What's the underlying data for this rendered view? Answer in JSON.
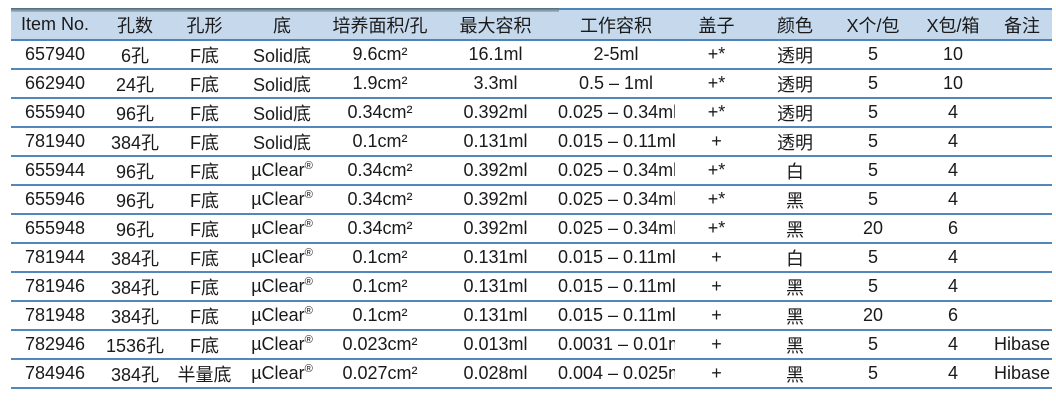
{
  "colors": {
    "header_bg": "#c6d9ec",
    "rule_blue": "#5088bb",
    "header_rule_blue": "#4d84ba",
    "text": "#1a1a1a",
    "top_bar_remnant": "#4c6574"
  },
  "table": {
    "columns": [
      {
        "key": "item-no",
        "label": "Item No."
      },
      {
        "key": "well-count",
        "label": "孔数"
      },
      {
        "key": "well-shape",
        "label": "孔形"
      },
      {
        "key": "bottom",
        "label": "底"
      },
      {
        "key": "growth-area",
        "label": "培养面积/孔"
      },
      {
        "key": "max-volume",
        "label": "最大容积"
      },
      {
        "key": "working-volume",
        "label": "工作容积"
      },
      {
        "key": "lid",
        "label": "盖子"
      },
      {
        "key": "color",
        "label": "颜色"
      },
      {
        "key": "pcs-per-pack",
        "label": "X个/包"
      },
      {
        "key": "packs-per-case",
        "label": "X包/箱"
      },
      {
        "key": "notes",
        "label": "备注"
      }
    ],
    "rows": [
      {
        "cells": [
          "657940",
          "6孔",
          "F底",
          "Solid底",
          "9.6cm²",
          "16.1ml",
          "2-5ml",
          "+*",
          "透明",
          "5",
          "10",
          ""
        ]
      },
      {
        "cells": [
          "662940",
          "24孔",
          "F底",
          "Solid底",
          "1.9cm²",
          "3.3ml",
          "0.5 – 1ml",
          "+*",
          "透明",
          "5",
          "10",
          ""
        ]
      },
      {
        "cells": [
          "655940",
          "96孔",
          "F底",
          "Solid底",
          "0.34cm²",
          "0.392ml",
          "0.025 – 0.34ml",
          "+*",
          "透明",
          "5",
          "4",
          ""
        ]
      },
      {
        "cells": [
          "781940",
          "384孔",
          "F底",
          "Solid底",
          "0.1cm²",
          "0.131ml",
          "0.015 – 0.11ml",
          "+",
          "透明",
          "5",
          "4",
          ""
        ]
      },
      {
        "cells": [
          "655944",
          "96孔",
          "F底",
          "µClear®",
          "0.34cm²",
          "0.392ml",
          "0.025 – 0.34ml",
          "+*",
          "白",
          "5",
          "4",
          ""
        ]
      },
      {
        "cells": [
          "655946",
          "96孔",
          "F底",
          "µClear®",
          "0.34cm²",
          "0.392ml",
          "0.025 – 0.34ml",
          "+*",
          "黑",
          "5",
          "4",
          ""
        ]
      },
      {
        "cells": [
          "655948",
          "96孔",
          "F底",
          "µClear®",
          "0.34cm²",
          "0.392ml",
          "0.025 – 0.34ml",
          "+*",
          "黑",
          "20",
          "6",
          ""
        ]
      },
      {
        "cells": [
          "781944",
          "384孔",
          "F底",
          "µClear®",
          "0.1cm²",
          "0.131ml",
          "0.015 – 0.11ml",
          "+",
          "白",
          "5",
          "4",
          ""
        ]
      },
      {
        "cells": [
          "781946",
          "384孔",
          "F底",
          "µClear®",
          "0.1cm²",
          "0.131ml",
          "0.015 – 0.11ml",
          "+",
          "黑",
          "5",
          "4",
          ""
        ]
      },
      {
        "cells": [
          "781948",
          "384孔",
          "F底",
          "µClear®",
          "0.1cm²",
          "0.131ml",
          "0.015 – 0.11ml",
          "+",
          "黑",
          "20",
          "6",
          ""
        ]
      },
      {
        "cells": [
          "782946",
          "1536孔",
          "F底",
          "µClear®",
          "0.023cm²",
          "0.013ml",
          "0.0031 – 0.01ml",
          "+",
          "黑",
          "5",
          "4",
          "Hibase"
        ]
      },
      {
        "cells": [
          "784946",
          "384孔",
          "半量底",
          "µClear®",
          "0.027cm²",
          "0.028ml",
          "0.004 – 0.025ml",
          "+",
          "黑",
          "5",
          "4",
          "Hibase"
        ]
      }
    ]
  }
}
